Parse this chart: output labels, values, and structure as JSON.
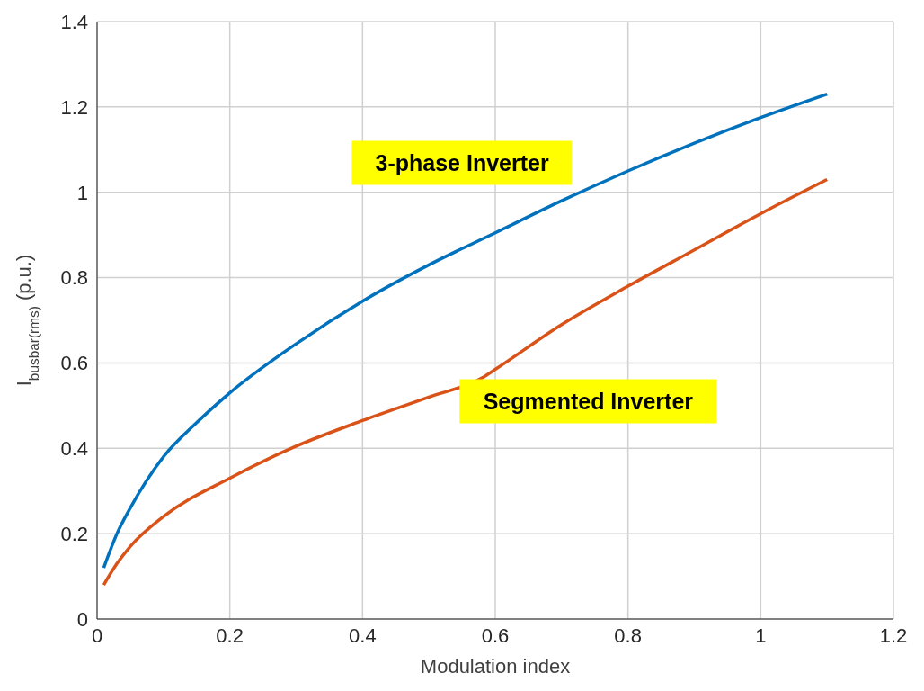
{
  "chart_data": {
    "type": "line",
    "xlabel": "Modulation index",
    "ylabel": "I$_{busbar(rms)}$ (p.u.)",
    "xlim": [
      0,
      1.2
    ],
    "xticks": [
      0,
      0.2,
      0.4,
      0.6,
      0.8,
      1,
      1.2
    ],
    "ylim": [
      0,
      1.4
    ],
    "yticks": [
      0,
      0.2,
      0.4,
      0.6,
      0.8,
      1,
      1.2,
      1.4
    ],
    "grid": true,
    "marker": "none",
    "line_style": "solid",
    "series": [
      {
        "name": "3-phase Inverter",
        "color": "#0072bd",
        "x": [
          0.01,
          0.03,
          0.05,
          0.1,
          0.15,
          0.2,
          0.3,
          0.4,
          0.5,
          0.6,
          0.7,
          0.8,
          0.9,
          1.0,
          1.1
        ],
        "values": [
          0.12,
          0.2,
          0.26,
          0.38,
          0.46,
          0.53,
          0.645,
          0.745,
          0.83,
          0.905,
          0.98,
          1.05,
          1.115,
          1.175,
          1.23
        ]
      },
      {
        "name": "Segmented Inverter",
        "color": "#d95319",
        "x": [
          0.01,
          0.03,
          0.05,
          0.1,
          0.2,
          0.3,
          0.4,
          0.5,
          0.58,
          0.6,
          0.7,
          0.8,
          0.9,
          1.0,
          1.1
        ],
        "values": [
          0.08,
          0.13,
          0.17,
          0.24,
          0.33,
          0.405,
          0.465,
          0.52,
          0.565,
          0.585,
          0.69,
          0.78,
          0.865,
          0.95,
          1.03
        ]
      }
    ]
  }
}
